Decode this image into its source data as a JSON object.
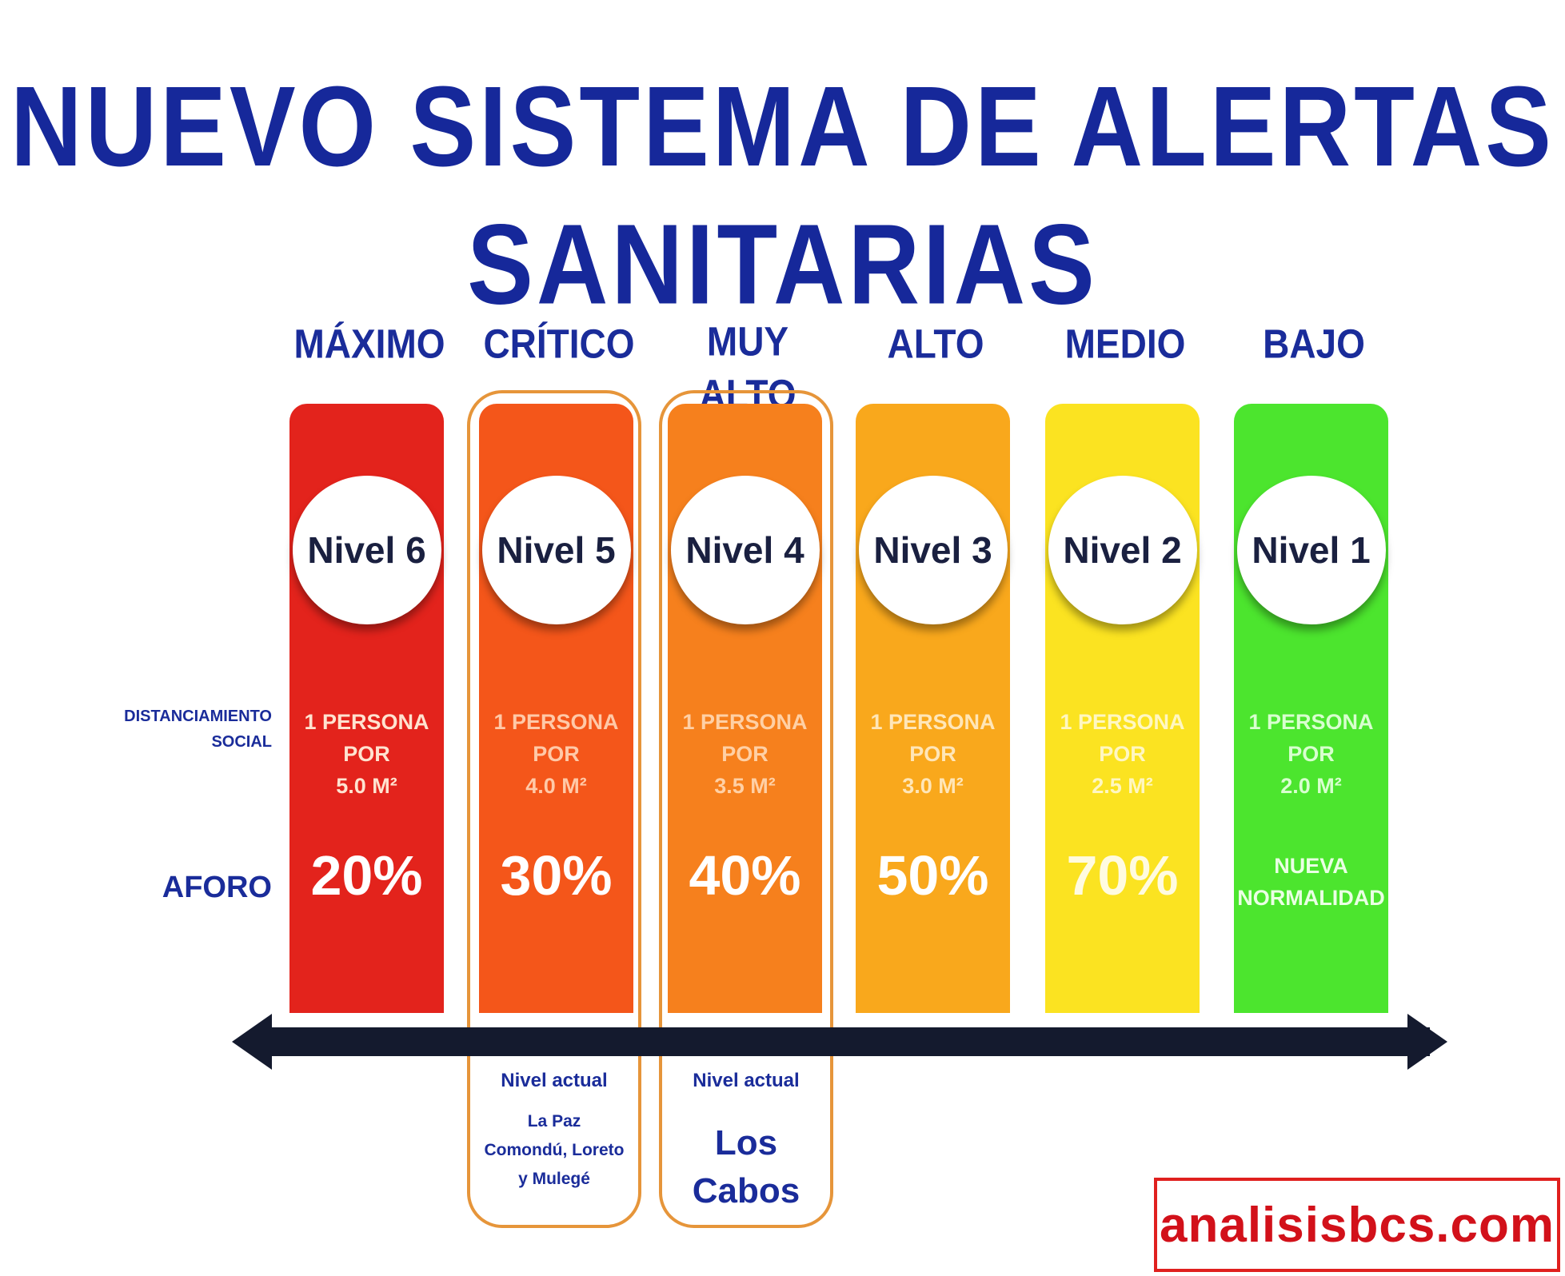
{
  "title": "NUEVO SISTEMA DE ALERTAS SANITARIAS",
  "row_labels": {
    "distanciamiento": "DISTANCIAMIENTO\nSOCIAL",
    "aforo": "AFORO"
  },
  "levels": [
    {
      "name": "MÁXIMO",
      "nivel": "Nivel 6",
      "distanciamiento": "1 PERSONA POR\n5.0 M²",
      "aforo": "20%",
      "color": "#e3231c"
    },
    {
      "name": "CRÍTICO",
      "nivel": "Nivel 5",
      "distanciamiento": "1 PERSONA POR\n4.0 M²",
      "aforo": "30%",
      "color": "#f4561a"
    },
    {
      "name": "MUY ALTO",
      "nivel": "Nivel 4",
      "distanciamiento": "1 PERSONA POR\n3.5 M²",
      "aforo": "40%",
      "color": "#f6801d"
    },
    {
      "name": "ALTO",
      "nivel": "Nivel 3",
      "distanciamiento": "1 PERSONA POR\n3.0 M²",
      "aforo": "50%",
      "color": "#f9a81c"
    },
    {
      "name": "MEDIO",
      "nivel": "Nivel 2",
      "distanciamiento": "1 PERSONA POR\n2.5 M²",
      "aforo": "70%",
      "color": "#fbe321"
    },
    {
      "name": "BAJO",
      "nivel": "Nivel 1",
      "distanciamiento": "1 PERSONA POR\n2.0 M²",
      "aforo": "NUEVA\nNORMALIDAD",
      "color": "#4ce52e"
    }
  ],
  "current": [
    {
      "label": "Nivel actual",
      "places": "La Paz\nComondú, Loreto\ny Mulegé"
    },
    {
      "label": "Nivel actual",
      "places": "Los Cabos"
    }
  ],
  "brand": "analisisbcs.com"
}
